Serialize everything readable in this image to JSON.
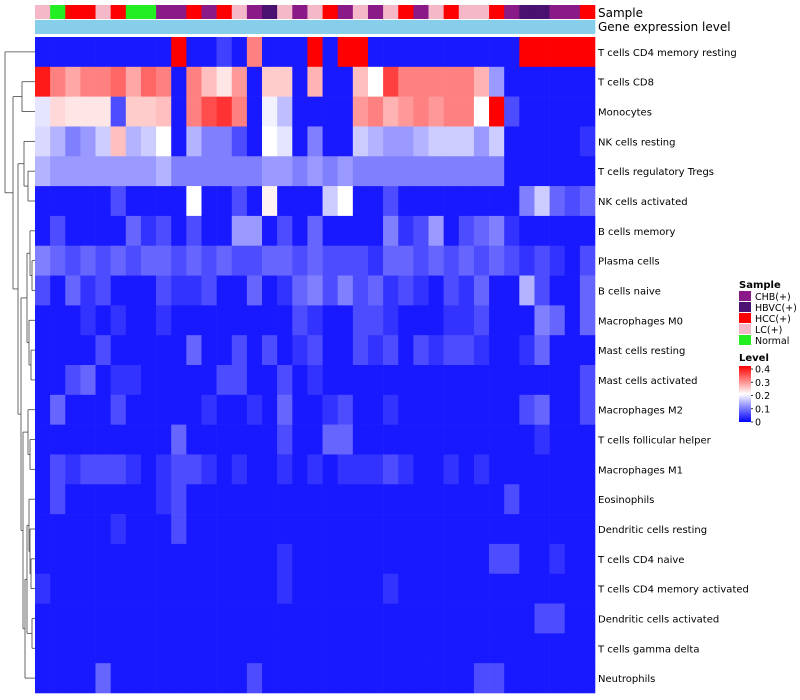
{
  "chart_data": {
    "type": "heatmap",
    "annotations": [
      "Sample",
      "Gene expression level"
    ],
    "sample_legend": {
      "title": "Sample",
      "items": [
        {
          "label": "CHB(+)",
          "color": "#8B1A89"
        },
        {
          "label": "HBVC(+)",
          "color": "#4B1170"
        },
        {
          "label": "HCC(+)",
          "color": "#FF0000"
        },
        {
          "label": "LC(+)",
          "color": "#F4B8C8"
        },
        {
          "label": "Normal",
          "color": "#22EE22"
        }
      ]
    },
    "sample_groups": [
      3,
      4,
      2,
      2,
      3,
      2,
      4,
      4,
      0,
      0,
      2,
      0,
      2,
      3,
      0,
      1,
      3,
      0,
      3,
      2,
      0,
      3,
      0,
      3,
      2,
      0,
      3,
      2,
      3,
      3,
      2,
      0,
      1,
      1,
      0,
      0,
      2
    ],
    "expression_levels": [
      "low",
      "low",
      "low",
      "low",
      "low",
      "low",
      "low",
      "low",
      "low",
      "low",
      "low",
      "low",
      "low",
      "low",
      "low",
      "low",
      "low",
      "low",
      "low",
      "low",
      "low",
      "low",
      "low",
      "low",
      "low",
      "low",
      "low",
      "low",
      "low",
      "low",
      "low",
      "low",
      "low",
      "low",
      "low",
      "low",
      "low"
    ],
    "expression_colors": {
      "low": "#87CEEB"
    },
    "level_legend": {
      "title": "Level",
      "ticks": [
        "0.4",
        "0.3",
        "0.2",
        "0.1",
        "0"
      ],
      "tick_values": [
        0.4,
        0.3,
        0.2,
        0.1,
        0
      ],
      "range": [
        0,
        0.4
      ],
      "colors": [
        "#0000FF",
        "#FFFFFF",
        "#FF0000"
      ]
    },
    "rows": [
      "T cells CD4 memory resting",
      "T cells CD8",
      "Monocytes",
      "NK cells resting",
      "T cells regulatory  Tregs",
      "NK cells activated",
      "B cells memory",
      "Plasma cells",
      "B cells naive",
      "Macrophages M0",
      "Mast cells resting",
      "Mast cells activated",
      "Macrophages M2",
      "T cells follicular helper",
      "Macrophages M1",
      "Eosinophils",
      "Dendritic cells resting",
      "T cells CD4 naive",
      "T cells CD4 memory activated",
      "Dendritic cells activated",
      "T cells gamma delta",
      "Neutrophils"
    ],
    "values": [
      [
        0.02,
        0.02,
        0.02,
        0.02,
        0.02,
        0.02,
        0.02,
        0.02,
        0.02,
        0.4,
        0.02,
        0.02,
        0.05,
        0.02,
        0.3,
        0.02,
        0.02,
        0.02,
        0.4,
        0.02,
        0.4,
        0.4,
        0.02,
        0.02,
        0.02,
        0.02,
        0.02,
        0.02,
        0.02,
        0.02,
        0.02,
        0.02,
        0.4,
        0.4,
        0.4,
        0.4,
        0.4
      ],
      [
        0.38,
        0.3,
        0.27,
        0.3,
        0.3,
        0.32,
        0.27,
        0.32,
        0.3,
        0.02,
        0.3,
        0.25,
        0.22,
        0.28,
        0.02,
        0.24,
        0.24,
        0.02,
        0.26,
        0.02,
        0.02,
        0.25,
        0.2,
        0.35,
        0.3,
        0.3,
        0.3,
        0.3,
        0.3,
        0.26,
        0.12,
        0.02,
        0.02,
        0.02,
        0.02,
        0.02,
        0.02
      ],
      [
        0.18,
        0.23,
        0.22,
        0.22,
        0.22,
        0.06,
        0.24,
        0.24,
        0.25,
        0.02,
        0.3,
        0.34,
        0.36,
        0.3,
        0.02,
        0.19,
        0.15,
        0.02,
        0.02,
        0.02,
        0.02,
        0.28,
        0.3,
        0.26,
        0.28,
        0.3,
        0.28,
        0.3,
        0.3,
        0.2,
        0.4,
        0.06,
        0.02,
        0.02,
        0.02,
        0.02,
        0.02
      ],
      [
        0.17,
        0.14,
        0.1,
        0.12,
        0.16,
        0.25,
        0.14,
        0.16,
        0.2,
        0.02,
        0.14,
        0.1,
        0.1,
        0.06,
        0.02,
        0.2,
        0.18,
        0.02,
        0.1,
        0.02,
        0.02,
        0.16,
        0.14,
        0.12,
        0.12,
        0.14,
        0.16,
        0.16,
        0.16,
        0.12,
        0.16,
        0.02,
        0.02,
        0.02,
        0.02,
        0.02,
        0.04
      ],
      [
        0.14,
        0.12,
        0.12,
        0.12,
        0.12,
        0.12,
        0.12,
        0.12,
        0.14,
        0.1,
        0.1,
        0.1,
        0.1,
        0.1,
        0.1,
        0.12,
        0.12,
        0.1,
        0.12,
        0.1,
        0.12,
        0.1,
        0.1,
        0.1,
        0.1,
        0.1,
        0.1,
        0.1,
        0.1,
        0.1,
        0.1,
        0.02,
        0.02,
        0.02,
        0.02,
        0.02,
        0.02
      ],
      [
        0.02,
        0.02,
        0.02,
        0.02,
        0.02,
        0.06,
        0.02,
        0.02,
        0.02,
        0.02,
        0.2,
        0.02,
        0.02,
        0.06,
        0.02,
        0.21,
        0.02,
        0.02,
        0.02,
        0.16,
        0.2,
        0.02,
        0.02,
        0.06,
        0.02,
        0.02,
        0.02,
        0.02,
        0.02,
        0.02,
        0.02,
        0.02,
        0.1,
        0.16,
        0.08,
        0.06,
        0.08
      ],
      [
        0.02,
        0.06,
        0.02,
        0.02,
        0.02,
        0.02,
        0.08,
        0.04,
        0.06,
        0.02,
        0.06,
        0.02,
        0.02,
        0.12,
        0.12,
        0.02,
        0.06,
        0.02,
        0.08,
        0.02,
        0.02,
        0.02,
        0.02,
        0.1,
        0.04,
        0.06,
        0.12,
        0.02,
        0.06,
        0.08,
        0.1,
        0.04,
        0.02,
        0.02,
        0.02,
        0.02,
        0.02
      ],
      [
        0.1,
        0.08,
        0.06,
        0.08,
        0.06,
        0.08,
        0.06,
        0.08,
        0.08,
        0.06,
        0.08,
        0.06,
        0.08,
        0.06,
        0.06,
        0.08,
        0.08,
        0.06,
        0.08,
        0.06,
        0.06,
        0.06,
        0.04,
        0.08,
        0.08,
        0.06,
        0.08,
        0.06,
        0.08,
        0.06,
        0.08,
        0.06,
        0.04,
        0.06,
        0.04,
        0.02,
        0.06
      ],
      [
        0.06,
        0.02,
        0.08,
        0.04,
        0.06,
        0.02,
        0.02,
        0.02,
        0.06,
        0.04,
        0.04,
        0.06,
        0.02,
        0.02,
        0.08,
        0.02,
        0.04,
        0.08,
        0.1,
        0.06,
        0.1,
        0.06,
        0.08,
        0.04,
        0.06,
        0.04,
        0.02,
        0.06,
        0.04,
        0.08,
        0.02,
        0.02,
        0.14,
        0.06,
        0.02,
        0.02,
        0.08
      ],
      [
        0.02,
        0.02,
        0.02,
        0.04,
        0.02,
        0.04,
        0.02,
        0.02,
        0.04,
        0.02,
        0.02,
        0.02,
        0.02,
        0.02,
        0.02,
        0.02,
        0.02,
        0.06,
        0.04,
        0.02,
        0.02,
        0.06,
        0.06,
        0.04,
        0.02,
        0.02,
        0.02,
        0.04,
        0.04,
        0.06,
        0.02,
        0.02,
        0.02,
        0.1,
        0.08,
        0.02,
        0.08
      ],
      [
        0.02,
        0.02,
        0.02,
        0.02,
        0.06,
        0.02,
        0.02,
        0.02,
        0.02,
        0.02,
        0.08,
        0.02,
        0.02,
        0.06,
        0.02,
        0.06,
        0.02,
        0.04,
        0.06,
        0.02,
        0.02,
        0.06,
        0.04,
        0.06,
        0.02,
        0.06,
        0.04,
        0.06,
        0.06,
        0.04,
        0.02,
        0.02,
        0.04,
        0.08,
        0.02,
        0.02,
        0.02
      ],
      [
        0.02,
        0.02,
        0.06,
        0.08,
        0.02,
        0.04,
        0.04,
        0.02,
        0.02,
        0.02,
        0.02,
        0.02,
        0.06,
        0.06,
        0.02,
        0.02,
        0.06,
        0.02,
        0.04,
        0.02,
        0.02,
        0.02,
        0.02,
        0.02,
        0.02,
        0.02,
        0.02,
        0.02,
        0.02,
        0.02,
        0.02,
        0.02,
        0.02,
        0.02,
        0.02,
        0.02,
        0.06
      ],
      [
        0.02,
        0.08,
        0.02,
        0.02,
        0.02,
        0.06,
        0.02,
        0.02,
        0.02,
        0.02,
        0.02,
        0.04,
        0.02,
        0.02,
        0.04,
        0.02,
        0.08,
        0.02,
        0.02,
        0.04,
        0.06,
        0.02,
        0.02,
        0.04,
        0.02,
        0.02,
        0.02,
        0.02,
        0.02,
        0.02,
        0.02,
        0.02,
        0.06,
        0.08,
        0.02,
        0.02,
        0.06
      ],
      [
        0.02,
        0.02,
        0.02,
        0.02,
        0.02,
        0.02,
        0.02,
        0.02,
        0.02,
        0.08,
        0.02,
        0.02,
        0.02,
        0.02,
        0.02,
        0.02,
        0.06,
        0.02,
        0.02,
        0.08,
        0.08,
        0.02,
        0.02,
        0.02,
        0.02,
        0.02,
        0.02,
        0.02,
        0.02,
        0.02,
        0.02,
        0.02,
        0.02,
        0.04,
        0.02,
        0.02,
        0.02
      ],
      [
        0.02,
        0.06,
        0.04,
        0.06,
        0.06,
        0.06,
        0.04,
        0.02,
        0.04,
        0.06,
        0.06,
        0.04,
        0.02,
        0.04,
        0.02,
        0.02,
        0.04,
        0.02,
        0.04,
        0.02,
        0.04,
        0.04,
        0.04,
        0.06,
        0.04,
        0.02,
        0.02,
        0.04,
        0.02,
        0.04,
        0.02,
        0.02,
        0.02,
        0.02,
        0.02,
        0.02,
        0.02
      ],
      [
        0.02,
        0.06,
        0.02,
        0.02,
        0.02,
        0.02,
        0.02,
        0.02,
        0.04,
        0.06,
        0.02,
        0.02,
        0.02,
        0.02,
        0.02,
        0.02,
        0.02,
        0.02,
        0.02,
        0.02,
        0.02,
        0.02,
        0.02,
        0.02,
        0.02,
        0.02,
        0.02,
        0.02,
        0.02,
        0.02,
        0.02,
        0.06,
        0.02,
        0.02,
        0.02,
        0.02,
        0.02
      ],
      [
        0.02,
        0.02,
        0.02,
        0.02,
        0.02,
        0.04,
        0.02,
        0.02,
        0.02,
        0.06,
        0.02,
        0.02,
        0.02,
        0.02,
        0.02,
        0.02,
        0.02,
        0.02,
        0.02,
        0.02,
        0.02,
        0.02,
        0.02,
        0.02,
        0.02,
        0.02,
        0.02,
        0.02,
        0.02,
        0.02,
        0.02,
        0.02,
        0.02,
        0.02,
        0.02,
        0.02,
        0.02
      ],
      [
        0.02,
        0.02,
        0.02,
        0.02,
        0.02,
        0.02,
        0.02,
        0.02,
        0.02,
        0.02,
        0.02,
        0.02,
        0.02,
        0.02,
        0.02,
        0.02,
        0.04,
        0.02,
        0.02,
        0.02,
        0.02,
        0.02,
        0.02,
        0.02,
        0.02,
        0.02,
        0.02,
        0.02,
        0.02,
        0.02,
        0.06,
        0.06,
        0.02,
        0.02,
        0.04,
        0.02,
        0.02
      ],
      [
        0.04,
        0.02,
        0.02,
        0.02,
        0.02,
        0.02,
        0.02,
        0.02,
        0.02,
        0.02,
        0.02,
        0.02,
        0.02,
        0.02,
        0.02,
        0.02,
        0.04,
        0.02,
        0.02,
        0.02,
        0.02,
        0.02,
        0.02,
        0.04,
        0.02,
        0.02,
        0.02,
        0.02,
        0.02,
        0.02,
        0.02,
        0.02,
        0.02,
        0.02,
        0.02,
        0.02,
        0.02
      ],
      [
        0.02,
        0.02,
        0.02,
        0.02,
        0.02,
        0.02,
        0.02,
        0.02,
        0.02,
        0.02,
        0.02,
        0.02,
        0.02,
        0.02,
        0.02,
        0.02,
        0.02,
        0.02,
        0.02,
        0.02,
        0.02,
        0.02,
        0.02,
        0.02,
        0.02,
        0.02,
        0.02,
        0.02,
        0.02,
        0.02,
        0.02,
        0.02,
        0.02,
        0.06,
        0.06,
        0.02,
        0.02
      ],
      [
        0.02,
        0.02,
        0.02,
        0.02,
        0.02,
        0.02,
        0.02,
        0.02,
        0.02,
        0.02,
        0.02,
        0.02,
        0.02,
        0.02,
        0.02,
        0.02,
        0.02,
        0.02,
        0.02,
        0.02,
        0.02,
        0.02,
        0.02,
        0.02,
        0.02,
        0.02,
        0.02,
        0.02,
        0.02,
        0.02,
        0.02,
        0.02,
        0.02,
        0.02,
        0.02,
        0.02,
        0.02
      ],
      [
        0.02,
        0.02,
        0.02,
        0.02,
        0.08,
        0.02,
        0.02,
        0.02,
        0.02,
        0.02,
        0.02,
        0.02,
        0.02,
        0.02,
        0.06,
        0.02,
        0.02,
        0.02,
        0.02,
        0.02,
        0.02,
        0.02,
        0.02,
        0.02,
        0.02,
        0.02,
        0.02,
        0.02,
        0.02,
        0.06,
        0.06,
        0.02,
        0.02,
        0.02,
        0.02,
        0.02,
        0.02
      ]
    ]
  }
}
